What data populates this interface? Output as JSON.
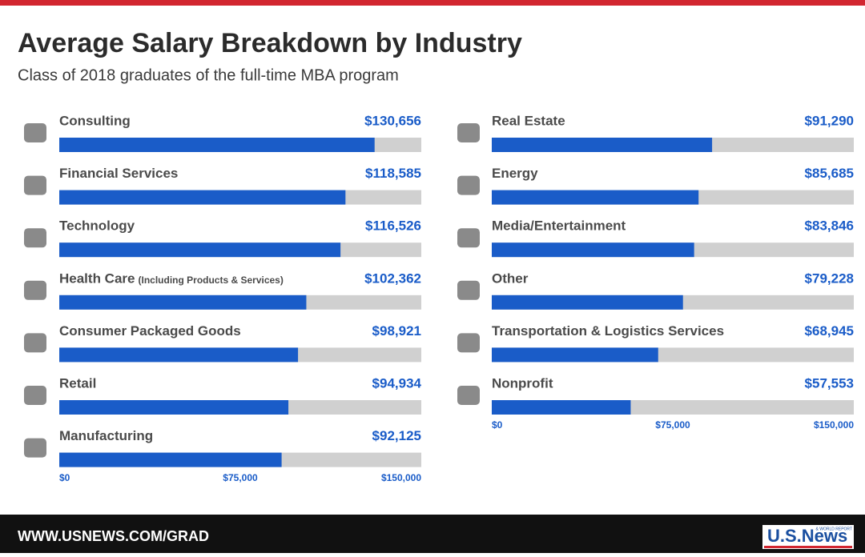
{
  "title": "Average Salary Breakdown by Industry",
  "subtitle": "Class of 2018 graduates of the full-time MBA program",
  "footer": "WWW.USNEWS.COM/GRAD",
  "logo": "U.S.News",
  "logo_tagline": "& WORLD REPORT",
  "chart_data": [
    {
      "type": "bar",
      "orientation": "horizontal",
      "color": "#1a5cc8",
      "track_color": "#d0d0d0",
      "categories": [
        "Consulting",
        "Financial Services",
        "Technology",
        "Health Care",
        "Consumer Packaged Goods",
        "Retail",
        "Manufacturing"
      ],
      "category_notes": [
        null,
        null,
        null,
        "(Including Products & Services)",
        null,
        null,
        null
      ],
      "values": [
        130656,
        118585,
        116526,
        102362,
        98921,
        94934,
        92125
      ],
      "value_labels": [
        "$130,656",
        "$118,585",
        "$116,526",
        "$102,362",
        "$98,921",
        "$94,934",
        "$92,125"
      ],
      "xlim": [
        0,
        150000
      ],
      "xticks": [
        {
          "value": 0,
          "label": "$0"
        },
        {
          "value": 75000,
          "label": "$75,000"
        },
        {
          "value": 150000,
          "label": "$150,000"
        }
      ]
    },
    {
      "type": "bar",
      "orientation": "horizontal",
      "color": "#1a5cc8",
      "track_color": "#d0d0d0",
      "categories": [
        "Real Estate",
        "Energy",
        "Media/Entertainment",
        "Other",
        "Transportation & Logistics Services",
        "Nonprofit"
      ],
      "category_notes": [
        null,
        null,
        null,
        null,
        null,
        null
      ],
      "values": [
        91290,
        85685,
        83846,
        79228,
        68945,
        57553
      ],
      "value_labels": [
        "$91,290",
        "$85,685",
        "$83,846",
        "$79,228",
        "$68,945",
        "$57,553"
      ],
      "xlim": [
        0,
        150000
      ],
      "xticks": [
        {
          "value": 0,
          "label": "$0"
        },
        {
          "value": 75000,
          "label": "$75,000"
        },
        {
          "value": 150000,
          "label": "$150,000"
        }
      ]
    }
  ]
}
